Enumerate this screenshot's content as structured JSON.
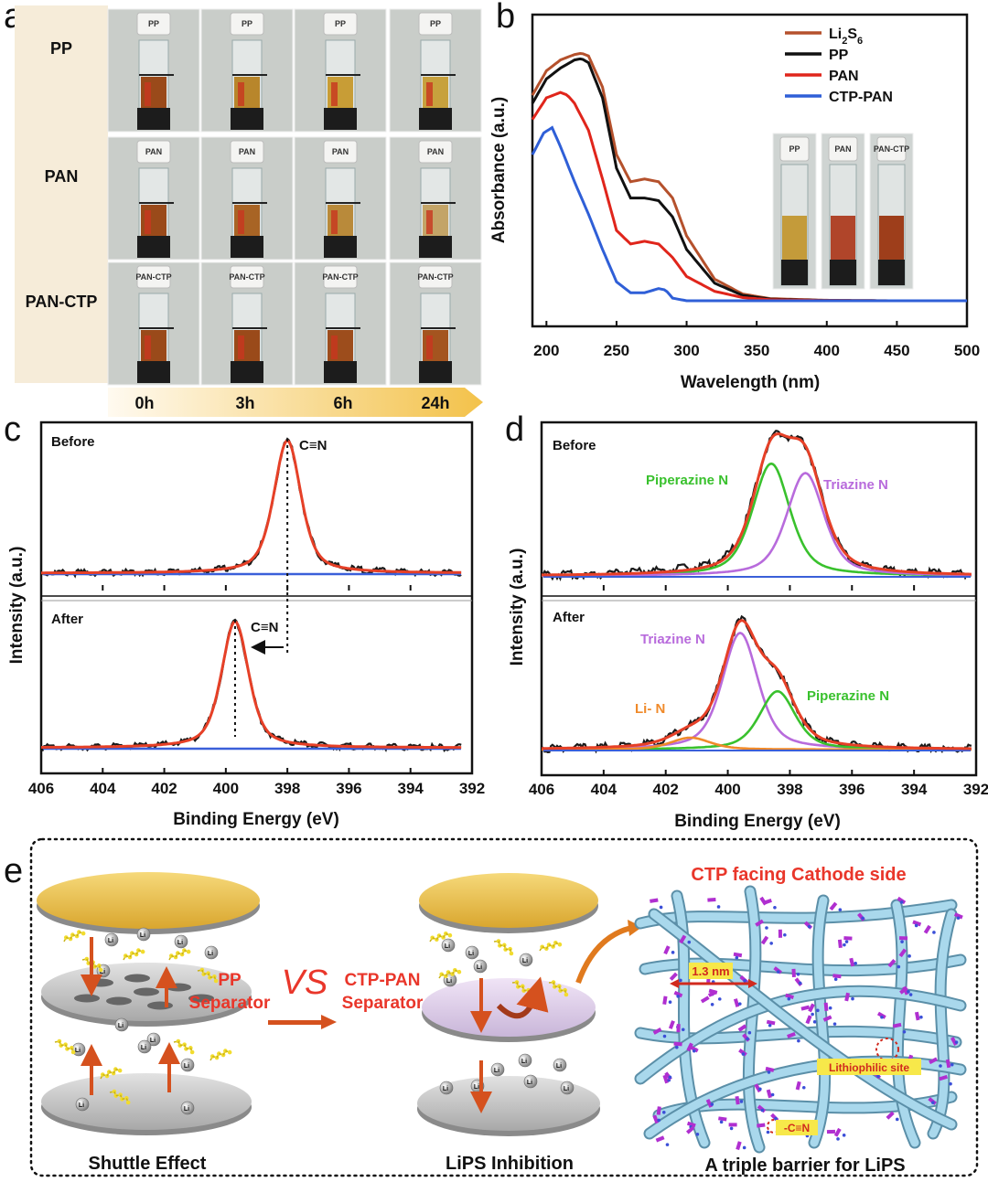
{
  "figure": {
    "panel_labels": [
      "a",
      "b",
      "c",
      "d",
      "e"
    ]
  },
  "panel_a": {
    "rows": [
      "PP",
      "PAN",
      "PAN-CTP"
    ],
    "times": [
      "0h",
      "3h",
      "6h",
      "24h"
    ],
    "cap_labels": [
      "PP",
      "PAN",
      "PAN-CTP"
    ],
    "colors": {
      "solution_brown": "#9a4a1a",
      "solution_yellow": "#c9a23a",
      "solution_clear": "#cdd5d8"
    }
  },
  "panel_b_inset": {
    "labels": [
      "PP",
      "PAN",
      "PAN-CTP"
    ]
  },
  "panel_e": {
    "shuttle_caption": "Shuttle Effect",
    "inhibition_caption": "LiPS Inhibition",
    "barrier_caption": "A triple barrier for LiPS",
    "pp_separator_line1": "PP",
    "pp_separator_line2": "Separator",
    "vs": "VS",
    "ctp_separator_line1": "CTP-PAN",
    "ctp_separator_line2": "Separator",
    "ctp_title": "CTP facing Cathode side",
    "pore_size": "1.3 nm",
    "lithiophilic": "Lithiophilic site",
    "cn_label": "-C≡N",
    "li_symbol": "Li",
    "li_charge": "+"
  },
  "chart_data": [
    {
      "id": "b",
      "type": "line",
      "title": "",
      "xlabel": "Wavelength (nm)",
      "ylabel": "Absorbance (a.u.)",
      "xlim": [
        190,
        500
      ],
      "ylim": [
        0,
        1.0
      ],
      "xticks": [
        200,
        250,
        300,
        350,
        400,
        450,
        500
      ],
      "legend_position": "top-right",
      "series": [
        {
          "name": "Li2S6",
          "legend_main": "Li",
          "legend_sub": "2",
          "legend_mid": "S",
          "legend_sub2": "6",
          "color": "#b5512c",
          "x": [
            190,
            200,
            210,
            220,
            225,
            230,
            240,
            250,
            260,
            270,
            280,
            290,
            300,
            320,
            340,
            360,
            400,
            450,
            500
          ],
          "y": [
            0.77,
            0.86,
            0.9,
            0.92,
            0.925,
            0.915,
            0.8,
            0.55,
            0.45,
            0.46,
            0.45,
            0.39,
            0.25,
            0.09,
            0.035,
            0.018,
            0.012,
            0.01,
            0.01
          ]
        },
        {
          "name": "PP",
          "color": "#111111",
          "x": [
            190,
            200,
            210,
            220,
            225,
            230,
            240,
            250,
            260,
            270,
            280,
            290,
            300,
            320,
            340,
            360,
            400,
            450,
            500
          ],
          "y": [
            0.74,
            0.83,
            0.87,
            0.9,
            0.905,
            0.89,
            0.76,
            0.5,
            0.39,
            0.39,
            0.38,
            0.32,
            0.2,
            0.075,
            0.03,
            0.016,
            0.011,
            0.01,
            0.01
          ]
        },
        {
          "name": "PAN",
          "color": "#e0251b",
          "x": [
            190,
            200,
            210,
            215,
            220,
            230,
            240,
            250,
            260,
            270,
            280,
            290,
            300,
            320,
            340,
            360,
            400,
            450,
            500
          ],
          "y": [
            0.68,
            0.76,
            0.78,
            0.77,
            0.74,
            0.64,
            0.46,
            0.27,
            0.22,
            0.23,
            0.22,
            0.17,
            0.1,
            0.045,
            0.022,
            0.014,
            0.011,
            0.01,
            0.01
          ]
        },
        {
          "name": "CTP-PAN",
          "color": "#2f5fd7",
          "x": [
            190,
            198,
            204,
            210,
            220,
            230,
            240,
            250,
            260,
            270,
            280,
            285,
            290,
            300,
            350,
            400,
            450,
            500
          ],
          "y": [
            0.55,
            0.63,
            0.65,
            0.58,
            0.45,
            0.33,
            0.2,
            0.08,
            0.04,
            0.04,
            0.055,
            0.05,
            0.02,
            0.01,
            0.01,
            0.01,
            0.01,
            0.01
          ]
        }
      ]
    },
    {
      "id": "c",
      "type": "line",
      "title": "",
      "xlabel": "Binding Energy (eV)",
      "ylabel": "Intensity (a.u.)",
      "xlim": [
        406,
        392
      ],
      "xticks": [
        406,
        404,
        402,
        400,
        398,
        396,
        394,
        392
      ],
      "subpanels": [
        {
          "label": "Before",
          "annotation": "C≡N",
          "peak_center": 398.0,
          "peak_width": 0.55,
          "baseline": 0.0,
          "series": [
            {
              "name": "raw",
              "color": "#1a1a1a"
            },
            {
              "name": "fit",
              "color": "#e64027"
            },
            {
              "name": "background",
              "color": "#3a5fd9"
            }
          ]
        },
        {
          "label": "After",
          "annotation": "C≡N",
          "peak_center": 399.7,
          "peak_width": 0.55,
          "baseline": 0.0,
          "series": [
            {
              "name": "raw",
              "color": "#1a1a1a"
            },
            {
              "name": "fit",
              "color": "#e64027"
            },
            {
              "name": "background",
              "color": "#3a5fd9"
            }
          ]
        }
      ]
    },
    {
      "id": "d",
      "type": "line",
      "title": "",
      "xlabel": "Binding Energy (eV)",
      "ylabel": "Intensity (a.u.)",
      "xlim": [
        406,
        392
      ],
      "xticks": [
        406,
        404,
        402,
        400,
        398,
        396,
        394,
        392
      ],
      "subpanels": [
        {
          "label": "Before",
          "components": [
            {
              "name": "Piperazine N",
              "center": 398.6,
              "height": 0.83,
              "width": 0.75,
              "color": "#39c12d"
            },
            {
              "name": "Triazine N",
              "center": 397.5,
              "height": 0.76,
              "width": 0.75,
              "color": "#b86bdc"
            }
          ]
        },
        {
          "label": "After",
          "components": [
            {
              "name": "Triazine N",
              "center": 399.6,
              "height": 0.88,
              "width": 0.72,
              "color": "#b86bdc"
            },
            {
              "name": "Piperazine N",
              "center": 398.4,
              "height": 0.44,
              "width": 0.72,
              "color": "#39c12d"
            },
            {
              "name": "Li- N",
              "center": 401.2,
              "height": 0.09,
              "width": 0.8,
              "color": "#f08a2a"
            }
          ]
        }
      ]
    }
  ]
}
